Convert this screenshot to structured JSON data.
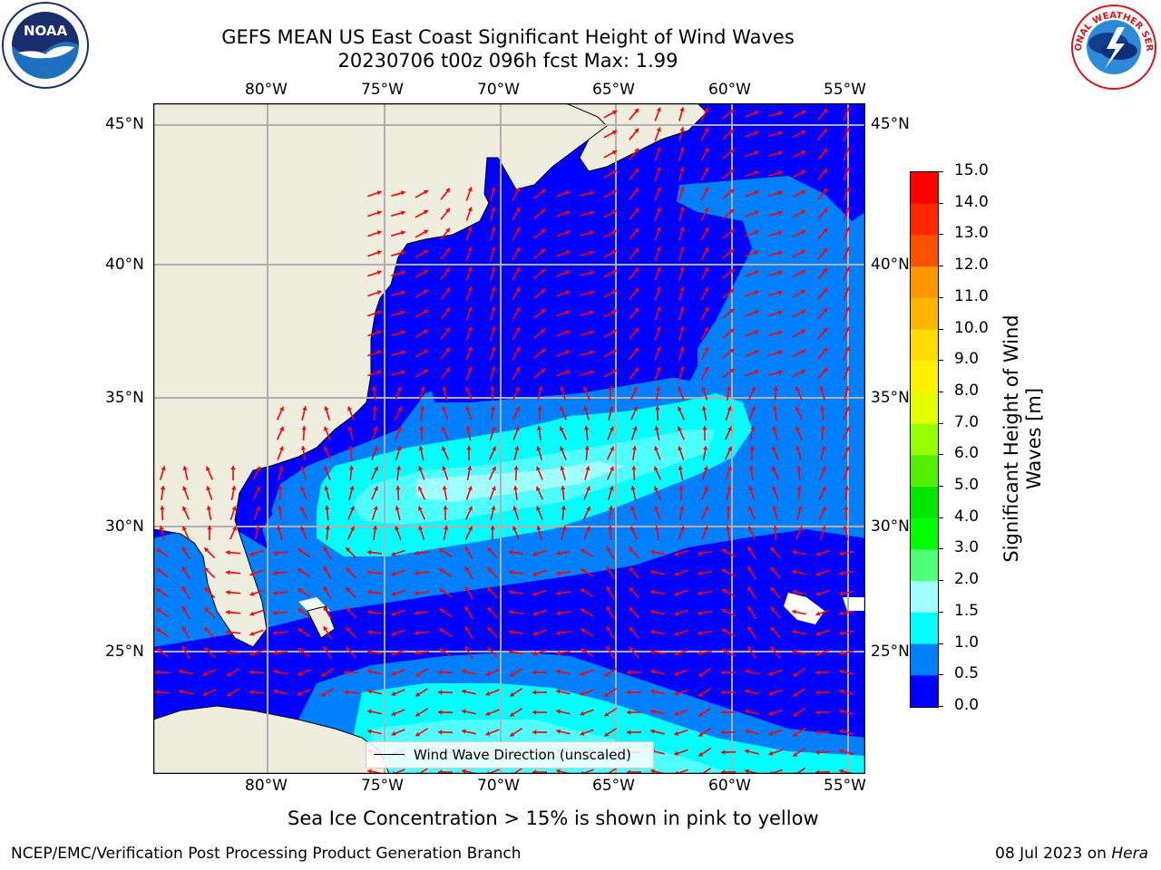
{
  "title": {
    "line1": "GEFS MEAN US East Coast Significant Height of Wind Waves",
    "line2": "20230706 t00z 096h fcst   Max: 1.99"
  },
  "map": {
    "lon_ticks": [
      "80°W",
      "75°W",
      "70°W",
      "65°W",
      "60°W",
      "55°W"
    ],
    "lat_ticks": [
      "45°N",
      "40°N",
      "35°N",
      "30°N",
      "25°N"
    ],
    "colors": {
      "land": "#efedde",
      "coastline": "#000000",
      "grid": "#b0b0b0",
      "arrow": "#ff0000"
    },
    "legend_label": "Wind Wave Direction (unscaled)"
  },
  "colorbar": {
    "label": "Significant Height of Wind Waves [m]",
    "ticks": [
      "15.0",
      "14.0",
      "13.0",
      "12.0",
      "11.0",
      "10.0",
      "9.0",
      "8.0",
      "7.0",
      "6.0",
      "5.0",
      "4.0",
      "3.0",
      "2.0",
      "1.5",
      "1.0",
      "0.5",
      "0.0"
    ],
    "colors": [
      "#ff0000",
      "#ff2800",
      "#ff5000",
      "#ff7800",
      "#ff9600",
      "#ffb400",
      "#ffdc00",
      "#fff000",
      "#e6ff00",
      "#c8ff00",
      "#96ff00",
      "#50f000",
      "#00e600",
      "#00ff00",
      "#50ff78",
      "#a0ffff",
      "#50ffff",
      "#00ffff",
      "#0080ff",
      "#0000ff"
    ]
  },
  "caption": "Sea Ice Concentration > 15% is shown in pink to yellow",
  "footer": {
    "left": "NCEP/EMC/Verification Post Processing Product Generation Branch",
    "date": "08 Jul 2023 on",
    "machine": "Hera"
  },
  "logos": {
    "noaa_text": "NOAA",
    "nws_text": "NATIONAL WEATHER SERVICE"
  }
}
